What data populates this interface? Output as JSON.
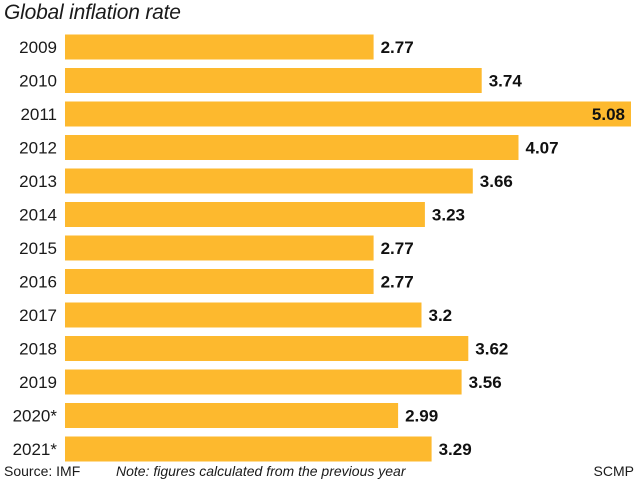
{
  "chart_data": {
    "type": "bar",
    "orientation": "horizontal",
    "title": "Global inflation rate",
    "categories": [
      "2009",
      "2010",
      "2011",
      "2012",
      "2013",
      "2014",
      "2015",
      "2016",
      "2017",
      "2018",
      "2019",
      "2020*",
      "2021*"
    ],
    "values": [
      2.77,
      3.74,
      5.08,
      4.07,
      3.66,
      3.23,
      2.77,
      2.77,
      3.2,
      3.62,
      3.56,
      2.99,
      3.29
    ],
    "value_labels": [
      "2.77",
      "3.74",
      "5.08",
      "4.07",
      "3.66",
      "3.23",
      "2.77",
      "2.77",
      "3.2",
      "3.62",
      "3.56",
      "2.99",
      "3.29"
    ],
    "xlabel": "",
    "ylabel": "",
    "grid": false,
    "bar_color": "#FDB92E"
  },
  "footer": {
    "source": "Source: IMF",
    "note": "Note: figures calculated from the previous year",
    "credit": "SCMP"
  }
}
